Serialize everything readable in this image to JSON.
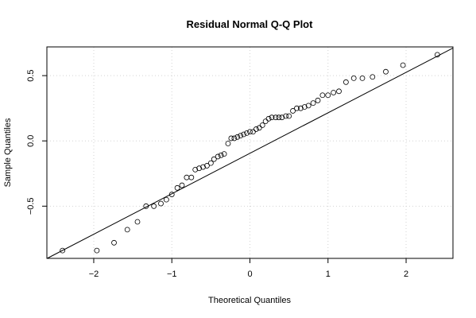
{
  "chart_data": {
    "type": "scatter",
    "title": "Residual Normal Q-Q Plot",
    "xlabel": "Theoretical Quantiles",
    "ylabel": "Sample Quantiles",
    "xlim": [
      -2.6,
      2.6
    ],
    "ylim": [
      -0.9,
      0.72
    ],
    "xticks": [
      -2,
      -1,
      0,
      1,
      2
    ],
    "xtick_labels": [
      "−2",
      "−1",
      "0",
      "1",
      "2"
    ],
    "yticks": [
      -0.5,
      0.0,
      0.5
    ],
    "ytick_labels": [
      "−0.5",
      "0.0",
      "0.5"
    ],
    "grid": true,
    "reference_line": {
      "slope": 0.31,
      "intercept": -0.095
    },
    "points": [
      [
        -2.4,
        -0.84
      ],
      [
        -1.96,
        -0.84
      ],
      [
        -1.74,
        -0.78
      ],
      [
        -1.57,
        -0.68
      ],
      [
        -1.44,
        -0.62
      ],
      [
        -1.33,
        -0.5
      ],
      [
        -1.23,
        -0.5
      ],
      [
        -1.14,
        -0.48
      ],
      [
        -1.07,
        -0.45
      ],
      [
        -1.0,
        -0.41
      ],
      [
        -0.93,
        -0.36
      ],
      [
        -0.87,
        -0.34
      ],
      [
        -0.81,
        -0.28
      ],
      [
        -0.75,
        -0.28
      ],
      [
        -0.7,
        -0.22
      ],
      [
        -0.65,
        -0.21
      ],
      [
        -0.6,
        -0.2
      ],
      [
        -0.55,
        -0.19
      ],
      [
        -0.5,
        -0.17
      ],
      [
        -0.46,
        -0.14
      ],
      [
        -0.41,
        -0.12
      ],
      [
        -0.37,
        -0.11
      ],
      [
        -0.33,
        -0.1
      ],
      [
        -0.28,
        -0.02
      ],
      [
        -0.24,
        0.02
      ],
      [
        -0.2,
        0.02
      ],
      [
        -0.16,
        0.03
      ],
      [
        -0.12,
        0.04
      ],
      [
        -0.08,
        0.05
      ],
      [
        -0.04,
        0.06
      ],
      [
        0.0,
        0.07
      ],
      [
        0.04,
        0.07
      ],
      [
        0.08,
        0.09
      ],
      [
        0.12,
        0.1
      ],
      [
        0.16,
        0.12
      ],
      [
        0.2,
        0.15
      ],
      [
        0.24,
        0.17
      ],
      [
        0.28,
        0.18
      ],
      [
        0.33,
        0.18
      ],
      [
        0.37,
        0.18
      ],
      [
        0.41,
        0.18
      ],
      [
        0.46,
        0.19
      ],
      [
        0.5,
        0.19
      ],
      [
        0.55,
        0.23
      ],
      [
        0.6,
        0.25
      ],
      [
        0.65,
        0.25
      ],
      [
        0.7,
        0.26
      ],
      [
        0.75,
        0.27
      ],
      [
        0.81,
        0.29
      ],
      [
        0.87,
        0.31
      ],
      [
        0.93,
        0.35
      ],
      [
        1.0,
        0.35
      ],
      [
        1.07,
        0.37
      ],
      [
        1.14,
        0.38
      ],
      [
        1.23,
        0.45
      ],
      [
        1.33,
        0.48
      ],
      [
        1.44,
        0.48
      ],
      [
        1.57,
        0.49
      ],
      [
        1.74,
        0.53
      ],
      [
        1.96,
        0.58
      ],
      [
        2.4,
        0.66
      ]
    ]
  }
}
